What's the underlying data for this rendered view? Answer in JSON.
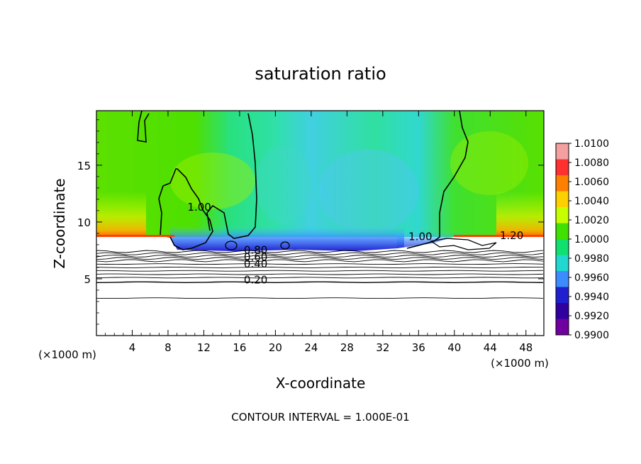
{
  "chart_data": {
    "type": "heatmap",
    "title": "saturation ratio",
    "xlabel": "X-coordinate",
    "ylabel": "Z-coordinate",
    "x_unit": "(×1000 m)",
    "y_unit": "(×1000 m)",
    "footer": "CONTOUR INTERVAL = 1.000E-01",
    "xlim": [
      0,
      50
    ],
    "ylim": [
      0,
      19.8
    ],
    "x_ticks": [
      4,
      8,
      12,
      16,
      20,
      24,
      28,
      32,
      36,
      40,
      44,
      48
    ],
    "y_ticks": [
      5,
      10,
      15
    ],
    "colorbar": {
      "levels": [
        "1.0100",
        "1.0080",
        "1.0060",
        "1.0040",
        "1.0020",
        "1.0000",
        "0.9980",
        "0.9960",
        "0.9940",
        "0.9920",
        "0.9900"
      ],
      "colors": [
        "#f4a0a0",
        "#ff3030",
        "#ff8000",
        "#ffd000",
        "#c8ff00",
        "#40e000",
        "#10e070",
        "#20d8d0",
        "#3c8cff",
        "#2020d0",
        "#3000a0",
        "#7000a0"
      ]
    },
    "contour_labels": [
      {
        "text": "1.00",
        "x": 11.5,
        "z": 11.0
      },
      {
        "text": "1.00",
        "x": 36.2,
        "z": 8.4
      },
      {
        "text": "1.20",
        "x": 46.4,
        "z": 8.5
      },
      {
        "text": "0.80",
        "x": 17.8,
        "z": 7.2
      },
      {
        "text": "0.60",
        "x": 17.8,
        "z": 6.6
      },
      {
        "text": "0.40",
        "x": 17.8,
        "z": 6.0
      },
      {
        "text": "0.20",
        "x": 17.8,
        "z": 4.6
      }
    ],
    "contour_levels_z": [
      3.3,
      4.7,
      5.1,
      5.4,
      5.7,
      6.0,
      6.3,
      6.6,
      6.8,
      7.0,
      7.2,
      7.4
    ]
  }
}
